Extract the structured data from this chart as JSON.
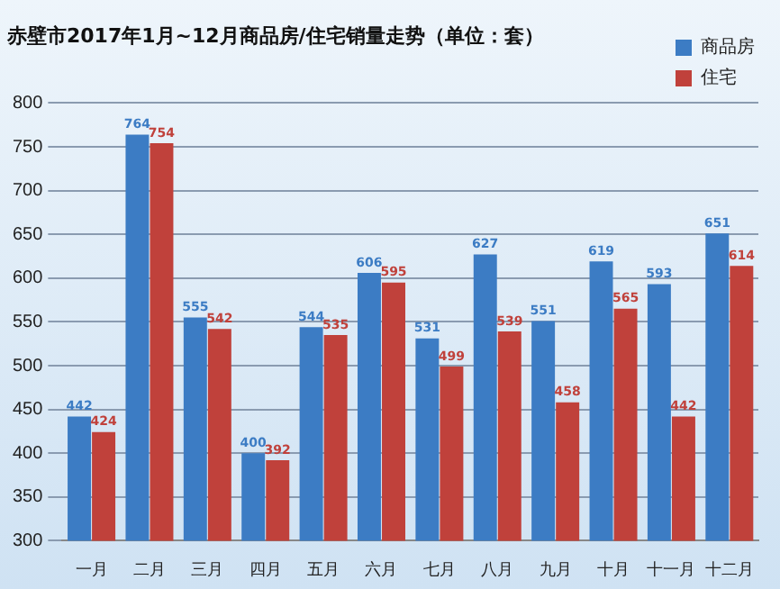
{
  "chart_data": {
    "type": "bar",
    "title": "赤壁市2017年1月~12月商品房/住宅销量走势（单位：套）",
    "categories": [
      "一月",
      "二月",
      "三月",
      "四月",
      "五月",
      "六月",
      "七月",
      "八月",
      "九月",
      "十月",
      "十一月",
      "十二月"
    ],
    "series": [
      {
        "name": "商品房",
        "color": "#3c7cc4",
        "values": [
          442,
          764,
          555,
          400,
          544,
          606,
          531,
          627,
          551,
          619,
          593,
          651
        ]
      },
      {
        "name": "住宅",
        "color": "#c0413b",
        "values": [
          424,
          754,
          542,
          392,
          535,
          595,
          499,
          539,
          458,
          565,
          442,
          614
        ]
      }
    ],
    "ylim": [
      300,
      800
    ],
    "yticks": [
      300,
      350,
      400,
      450,
      500,
      550,
      600,
      650,
      700,
      750,
      800
    ],
    "grid": "y",
    "legend": "top right",
    "data_labels": true
  }
}
